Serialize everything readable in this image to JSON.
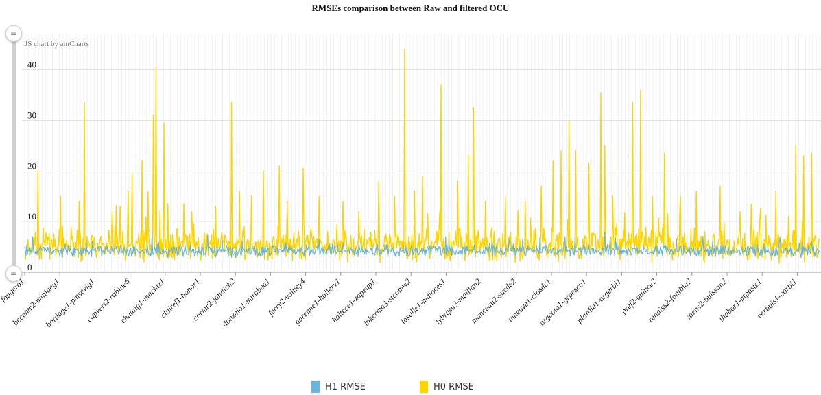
{
  "chart_data": {
    "type": "line",
    "title": "RMSEs comparison between Raw and filtered OCU",
    "credit": "JS chart by amCharts",
    "xlabel": "",
    "ylabel": "",
    "ylim": [
      0,
      47
    ],
    "yticks": [
      0,
      10,
      20,
      30,
      40
    ],
    "grid": true,
    "legend_position": "bottom",
    "x_tick_labels": [
      "fougero1",
      "becentr2-miniaeg1",
      "bordage1-pmsevig1",
      "capvert2-rabine6",
      "chataig1-machtz1",
      "clairef1-honor1",
      "cormr2-janaich2",
      "donzelo1-mirabea1",
      "ferry2-volney4",
      "garenne1-hallerv1",
      "haltece1-zapeup1",
      "inkerma3-stcomw2",
      "lasalle1-mdioces1",
      "lybrqsu3-maillan2",
      "manceau2-suede2",
      "mneuve1-closdc1",
      "orgcoto1-grpesco1",
      "plardie1-orgerbl1",
      "pref2-quince2",
      "renaiss2-fontbla2",
      "saens2-buisson2",
      "thabor1-ptpaste1",
      "verbuis1-corbi1"
    ],
    "n_points": 1200,
    "series": [
      {
        "name": "H1 RMSE",
        "color": "#67b7dc",
        "typical_range": [
          3.0,
          5.5
        ],
        "typical_mean": 4.2,
        "peaks": [
          [
            0.01,
            7
          ],
          [
            0.16,
            8
          ],
          [
            0.23,
            7.5
          ],
          [
            0.37,
            6.5
          ],
          [
            0.53,
            7
          ],
          [
            0.61,
            6.5
          ],
          [
            0.68,
            7
          ],
          [
            0.73,
            8
          ],
          [
            0.82,
            6.5
          ],
          [
            0.95,
            7
          ],
          [
            0.99,
            6
          ]
        ]
      },
      {
        "name": "H0 RMSE",
        "color": "#fdd400",
        "typical_range": [
          2.0,
          9.0
        ],
        "typical_mean": 5.3,
        "peaks": [
          [
            0.017,
            20
          ],
          [
            0.045,
            15
          ],
          [
            0.068,
            14
          ],
          [
            0.075,
            33.5
          ],
          [
            0.11,
            12
          ],
          [
            0.12,
            13
          ],
          [
            0.13,
            16
          ],
          [
            0.135,
            19.5
          ],
          [
            0.148,
            22
          ],
          [
            0.155,
            16
          ],
          [
            0.162,
            31
          ],
          [
            0.165,
            40.5
          ],
          [
            0.175,
            29.5
          ],
          [
            0.18,
            13.5
          ],
          [
            0.2,
            13.5
          ],
          [
            0.21,
            12
          ],
          [
            0.24,
            13
          ],
          [
            0.26,
            33.5
          ],
          [
            0.27,
            16
          ],
          [
            0.285,
            15
          ],
          [
            0.3,
            20
          ],
          [
            0.32,
            21
          ],
          [
            0.33,
            14
          ],
          [
            0.35,
            20.5
          ],
          [
            0.37,
            15
          ],
          [
            0.4,
            14
          ],
          [
            0.42,
            12
          ],
          [
            0.445,
            18
          ],
          [
            0.465,
            15
          ],
          [
            0.478,
            44
          ],
          [
            0.49,
            16
          ],
          [
            0.5,
            19
          ],
          [
            0.524,
            37
          ],
          [
            0.545,
            18
          ],
          [
            0.558,
            23
          ],
          [
            0.565,
            32.5
          ],
          [
            0.58,
            14
          ],
          [
            0.605,
            15
          ],
          [
            0.63,
            14
          ],
          [
            0.65,
            17
          ],
          [
            0.665,
            22
          ],
          [
            0.675,
            24
          ],
          [
            0.685,
            30
          ],
          [
            0.693,
            24
          ],
          [
            0.71,
            21.5
          ],
          [
            0.725,
            35.5
          ],
          [
            0.73,
            25
          ],
          [
            0.74,
            15
          ],
          [
            0.765,
            33.5
          ],
          [
            0.775,
            36
          ],
          [
            0.79,
            15
          ],
          [
            0.805,
            23.5
          ],
          [
            0.825,
            15
          ],
          [
            0.845,
            16
          ],
          [
            0.875,
            17
          ],
          [
            0.9,
            12
          ],
          [
            0.925,
            11
          ],
          [
            0.945,
            16
          ],
          [
            0.97,
            25
          ],
          [
            0.98,
            23
          ],
          [
            0.99,
            23.5
          ]
        ]
      }
    ]
  },
  "legend": {
    "items": [
      {
        "name": "H1 RMSE",
        "color": "#67b7dc"
      },
      {
        "name": "H0 RMSE",
        "color": "#fdd400"
      }
    ]
  },
  "scrollbar": {
    "handle_glyph": "="
  }
}
